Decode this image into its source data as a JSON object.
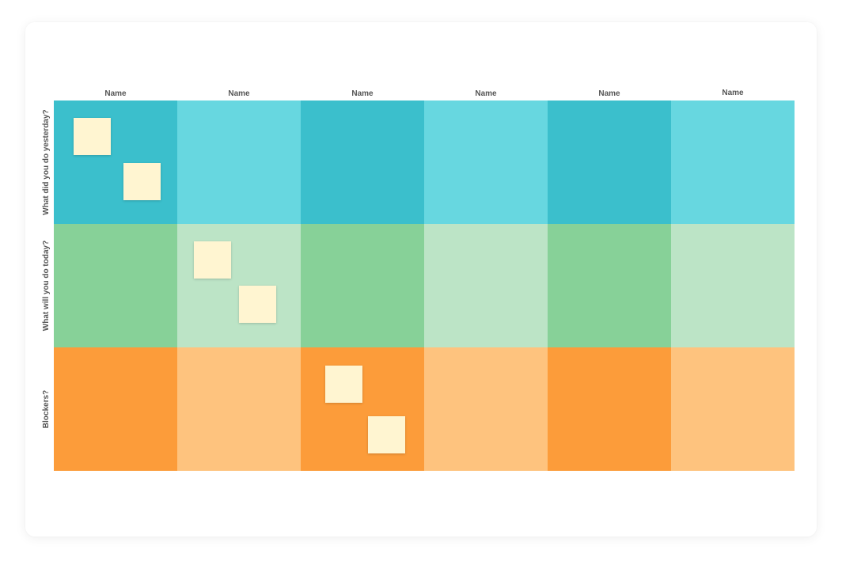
{
  "board": {
    "columns": [
      "Name",
      "Name",
      "Name",
      "Name",
      "Name",
      "Name"
    ],
    "rows": [
      {
        "label": "What did you do yesterday?",
        "colors": [
          "#3bbfcc",
          "#67d7e0",
          "#3bbfcc",
          "#67d7e0",
          "#3bbfcc",
          "#67d7e0"
        ]
      },
      {
        "label": "What will you do today?",
        "colors": [
          "#87d198",
          "#bce4c6",
          "#87d198",
          "#bce4c6",
          "#87d198",
          "#bce4c6"
        ]
      },
      {
        "label": "Blockers?",
        "colors": [
          "#fc9c3a",
          "#fec37e",
          "#fc9c3a",
          "#fec37e",
          "#fc9c3a",
          "#fec37e"
        ]
      }
    ],
    "sticky_note_color": "#fff5d1"
  }
}
